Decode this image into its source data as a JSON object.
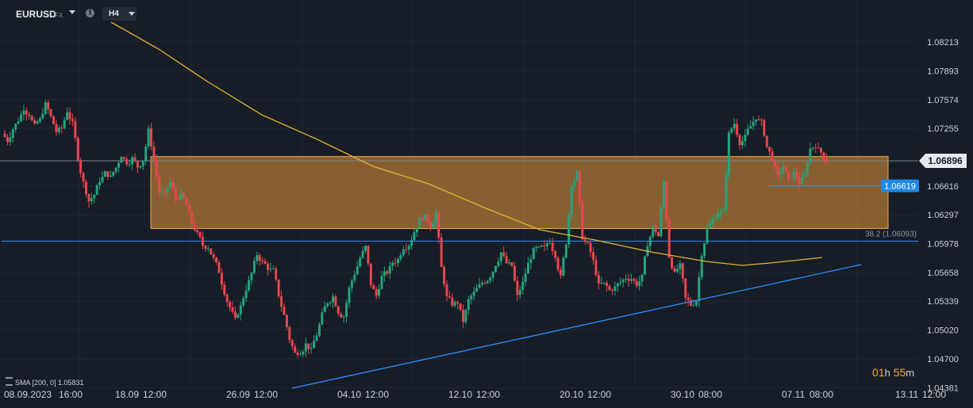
{
  "header": {
    "symbol": "EURUSD",
    "symbol_type": "FX",
    "info_icon": "info-icon",
    "timeframe": "H4"
  },
  "indicator": {
    "label": "SMA [200, 0] 1.05831"
  },
  "countdown": {
    "hours": "01",
    "hours_unit": "h",
    "minutes": "55",
    "minutes_unit": "m"
  },
  "price_tags": {
    "current": "1.06896",
    "level": "1.06619",
    "fib_label": "38.2 (1.06093)"
  },
  "colors": {
    "background": "#161d26",
    "up_candle": "#26a37a",
    "down_candle": "#e8464f",
    "sma": "#e3b230",
    "zone_fill": "#e8953a",
    "blue_line": "#2f8cff",
    "current_tag": "#e6e9ed",
    "level_tag": "#1e88e5",
    "countdown": "#f0a830"
  },
  "chart_data": {
    "type": "candlestick",
    "symbol": "EURUSD",
    "timeframe": "H4",
    "y_ticks": [
      "1.08213",
      "1.07893",
      "1.07574",
      "1.07255",
      "1.06896",
      "1.06616",
      "1.06297",
      "1.05978",
      "1.05658",
      "1.05339",
      "1.05020",
      "1.04700",
      "1.04381"
    ],
    "x_ticks": [
      "08.09.2023",
      "16:00",
      "18.09",
      "12:00",
      "26.09",
      "12:00",
      "04.10",
      "12:00",
      "12.10",
      "12:00",
      "20.10",
      "12:00",
      "30.10",
      "08:00",
      "07.11",
      "08:00",
      "13.11",
      "12:00"
    ],
    "ylim": [
      1.0433,
      1.0842
    ],
    "current_price": 1.06896,
    "horizontal_level": 1.06619,
    "fib_level": 1.06093,
    "resistance_zone": [
      1.06145,
      1.06943
    ],
    "series": [
      {
        "kind": "close_path",
        "values": [
          1.0712,
          1.0725,
          1.0735,
          1.0748,
          1.0741,
          1.0728,
          1.0735,
          1.0752,
          1.0738,
          1.0722,
          1.0726,
          1.0745,
          1.0731,
          1.0693,
          1.0665,
          1.0645,
          1.0652,
          1.0668,
          1.0676,
          1.0671,
          1.0682,
          1.0696,
          1.0688,
          1.0692,
          1.0683,
          1.069,
          1.0723,
          1.069,
          1.0655,
          1.0652,
          1.0666,
          1.0648,
          1.0651,
          1.064,
          1.0621,
          1.0608,
          1.0596,
          1.0594,
          1.0581,
          1.0567,
          1.0544,
          1.0527,
          1.0513,
          1.0528,
          1.0548,
          1.0565,
          1.0586,
          1.0577,
          1.0571,
          1.0568,
          1.0541,
          1.0518,
          1.0492,
          1.0476,
          1.0478,
          1.0486,
          1.0479,
          1.0497,
          1.0519,
          1.0533,
          1.0539,
          1.0522,
          1.0517,
          1.0548,
          1.0565,
          1.0582,
          1.0594,
          1.0553,
          1.054,
          1.0561,
          1.0566,
          1.0577,
          1.058,
          1.0594,
          1.0597,
          1.0611,
          1.0624,
          1.0627,
          1.0617,
          1.0632,
          1.0571,
          1.0538,
          1.0531,
          1.0533,
          1.0512,
          1.0535,
          1.0543,
          1.0551,
          1.0556,
          1.0562,
          1.0575,
          1.0588,
          1.0576,
          1.0573,
          1.0539,
          1.0554,
          1.0575,
          1.059,
          1.0592,
          1.0593,
          1.0601,
          1.0585,
          1.056,
          1.0599,
          1.0664,
          1.0676,
          1.0605,
          1.0596,
          1.0578,
          1.0551,
          1.0553,
          1.0546,
          1.0549,
          1.0555,
          1.056,
          1.0559,
          1.0553,
          1.0561,
          1.0598,
          1.0616,
          1.0606,
          1.0666,
          1.0584,
          1.0564,
          1.0573,
          1.0537,
          1.053,
          1.0535,
          1.0587,
          1.0615,
          1.0623,
          1.0633,
          1.0633,
          1.0719,
          1.0731,
          1.071,
          1.0716,
          1.0728,
          1.0738,
          1.0732,
          1.0705,
          1.0692,
          1.0672,
          1.0684,
          1.0667,
          1.0676,
          1.0665,
          1.0674,
          1.0703,
          1.0707,
          1.0699,
          1.0689
        ]
      },
      {
        "name": "SMA [200, 0]",
        "kind": "sma",
        "points": [
          [
            "18.09 12:00",
            1.0837
          ],
          [
            "26.09 12:00",
            1.076
          ],
          [
            "04.10 12:00",
            1.068
          ],
          [
            "12.10 12:00",
            1.063
          ],
          [
            "20.10 12:00",
            1.06
          ],
          [
            "30.10 08:00",
            1.0588
          ],
          [
            "07.11 08:00",
            1.0585
          ]
        ],
        "last": 1.05831
      }
    ]
  }
}
